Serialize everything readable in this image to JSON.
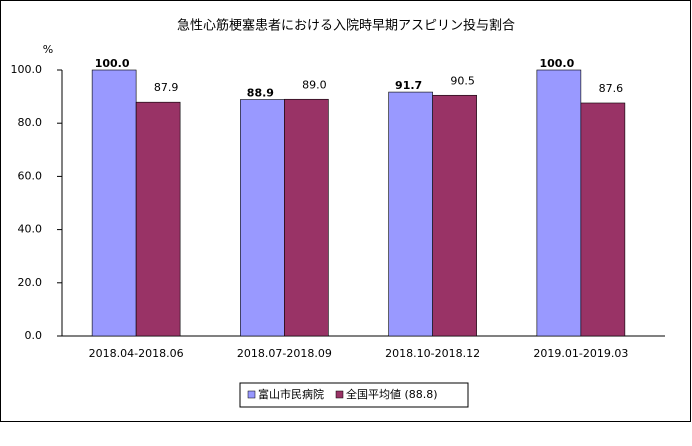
{
  "chart_data": {
    "type": "bar",
    "title": "急性心筋梗塞患者における入院時早期アスピリン投与割合",
    "y_unit": "%",
    "categories": [
      "2018.04-2018.06",
      "2018.07-2018.09",
      "2018.10-2018.12",
      "2019.01-2019.03"
    ],
    "series": [
      {
        "name": "富山市民病院",
        "color": "#9999ff",
        "values": [
          100.0,
          88.9,
          91.7,
          100.0
        ],
        "value_labels": [
          "100.0",
          "88.9",
          "91.7",
          "100.0"
        ]
      },
      {
        "name": "全国平均値 (88.8)",
        "color": "#993366",
        "values": [
          87.9,
          89.0,
          90.5,
          87.6
        ],
        "value_labels": [
          "87.9",
          "89.0",
          "90.5",
          "87.6"
        ]
      }
    ],
    "ylim": [
      0,
      100
    ],
    "yticks": [
      {
        "value": 0,
        "label": "0.0"
      },
      {
        "value": 20,
        "label": "20.0"
      },
      {
        "value": 40,
        "label": "40.0"
      },
      {
        "value": 60,
        "label": "60.0"
      },
      {
        "value": 80,
        "label": "80.0"
      },
      {
        "value": 100,
        "label": "100.0"
      }
    ],
    "grid": false,
    "legend": "bottom"
  }
}
